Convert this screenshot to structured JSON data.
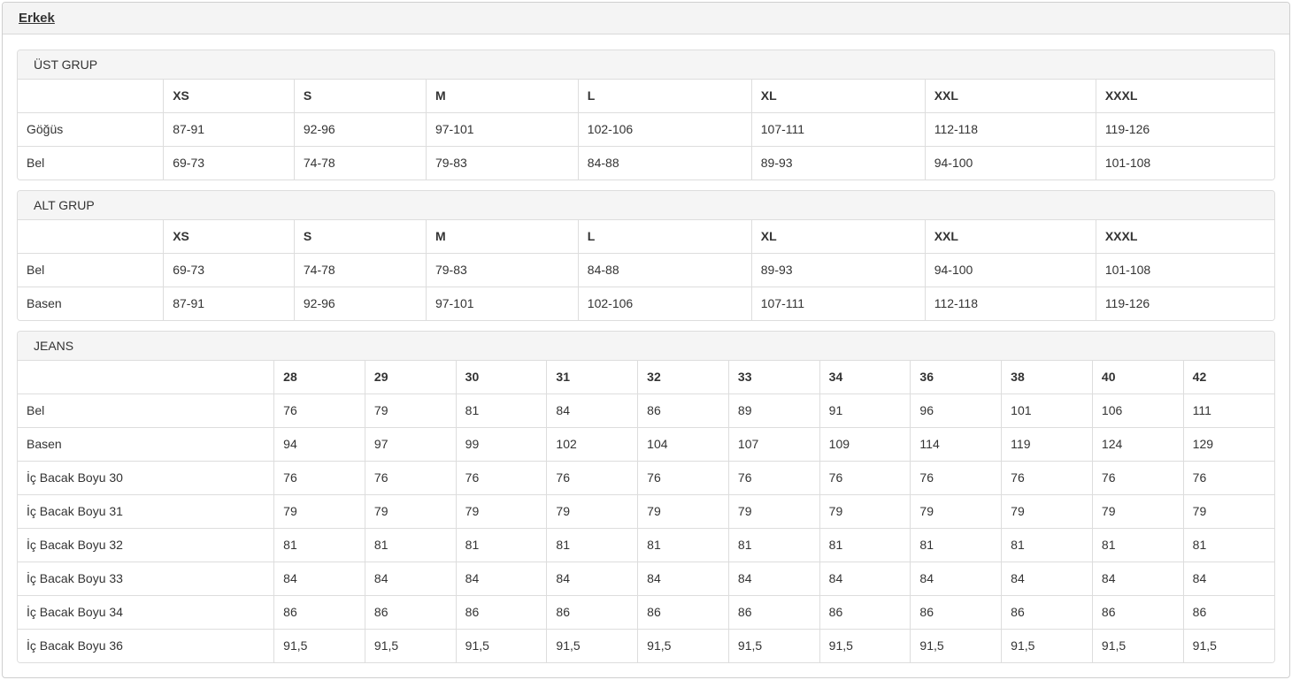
{
  "page": {
    "gender_tab": "Erkek"
  },
  "colors": {
    "strip_bg": "#f4f4f4",
    "panel_heading_bg": "#f5f5f5",
    "border": "#dddddd",
    "text": "#333333"
  },
  "panels": [
    {
      "heading": "ÜST GRUP",
      "columns": [
        "",
        "XS",
        "S",
        "M",
        "L",
        "XL",
        "XXL",
        "XXXL"
      ],
      "rows": [
        {
          "label": "Göğüs",
          "values": [
            "87-91",
            "92-96",
            "97-101",
            "102-106",
            "107-111",
            "112-118",
            "119-126"
          ]
        },
        {
          "label": "Bel",
          "values": [
            "69-73",
            "74-78",
            "79-83",
            "84-88",
            "89-93",
            "94-100",
            "101-108"
          ]
        }
      ]
    },
    {
      "heading": "ALT GRUP",
      "columns": [
        "",
        "XS",
        "S",
        "M",
        "L",
        "XL",
        "XXL",
        "XXXL"
      ],
      "rows": [
        {
          "label": "Bel",
          "values": [
            "69-73",
            "74-78",
            "79-83",
            "84-88",
            "89-93",
            "94-100",
            "101-108"
          ]
        },
        {
          "label": "Basen",
          "values": [
            "87-91",
            "92-96",
            "97-101",
            "102-106",
            "107-111",
            "112-118",
            "119-126"
          ]
        }
      ]
    },
    {
      "heading": "JEANS",
      "columns": [
        "",
        "28",
        "29",
        "30",
        "31",
        "32",
        "33",
        "34",
        "36",
        "38",
        "40",
        "42"
      ],
      "rows": [
        {
          "label": "Bel",
          "values": [
            "76",
            "79",
            "81",
            "84",
            "86",
            "89",
            "91",
            "96",
            "101",
            "106",
            "111"
          ]
        },
        {
          "label": "Basen",
          "values": [
            "94",
            "97",
            "99",
            "102",
            "104",
            "107",
            "109",
            "114",
            "119",
            "124",
            "129"
          ]
        },
        {
          "label": "İç Bacak Boyu 30",
          "values": [
            "76",
            "76",
            "76",
            "76",
            "76",
            "76",
            "76",
            "76",
            "76",
            "76",
            "76"
          ]
        },
        {
          "label": "İç Bacak Boyu 31",
          "values": [
            "79",
            "79",
            "79",
            "79",
            "79",
            "79",
            "79",
            "79",
            "79",
            "79",
            "79"
          ]
        },
        {
          "label": "İç Bacak Boyu 32",
          "values": [
            "81",
            "81",
            "81",
            "81",
            "81",
            "81",
            "81",
            "81",
            "81",
            "81",
            "81"
          ]
        },
        {
          "label": "İç Bacak Boyu 33",
          "values": [
            "84",
            "84",
            "84",
            "84",
            "84",
            "84",
            "84",
            "84",
            "84",
            "84",
            "84"
          ]
        },
        {
          "label": "İç Bacak Boyu 34",
          "values": [
            "86",
            "86",
            "86",
            "86",
            "86",
            "86",
            "86",
            "86",
            "86",
            "86",
            "86"
          ]
        },
        {
          "label": "İç Bacak Boyu 36",
          "values": [
            "91,5",
            "91,5",
            "91,5",
            "91,5",
            "91,5",
            "91,5",
            "91,5",
            "91,5",
            "91,5",
            "91,5",
            "91,5"
          ]
        }
      ]
    }
  ]
}
